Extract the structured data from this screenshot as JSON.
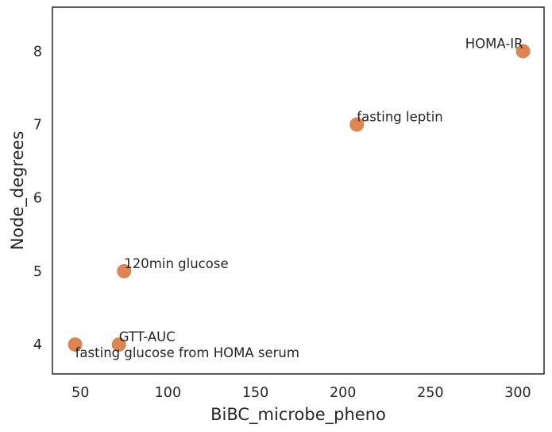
{
  "chart_data": {
    "type": "scatter",
    "title": "",
    "xlabel": "BiBC_microbe_pheno",
    "ylabel": "Node_degrees",
    "xlim": [
      34,
      315
    ],
    "ylim": [
      3.6,
      8.6
    ],
    "xticks": [
      50,
      100,
      150,
      200,
      250,
      300
    ],
    "yticks": [
      4,
      5,
      6,
      7,
      8
    ],
    "grid": false,
    "marker_color": "#dd8452",
    "points": [
      {
        "label": "HOMA-IR",
        "x": 303,
        "y": 8
      },
      {
        "label": "fasting leptin",
        "x": 208,
        "y": 7
      },
      {
        "label": "120min glucose",
        "x": 75,
        "y": 5
      },
      {
        "label": "GTT-AUC",
        "x": 72,
        "y": 4
      },
      {
        "label": "fasting glucose from HOMA serum",
        "x": 47,
        "y": 4
      }
    ]
  }
}
